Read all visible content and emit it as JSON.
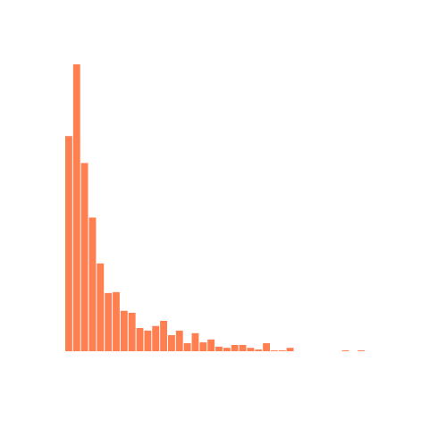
{
  "chart_data": {
    "type": "bar",
    "title": "",
    "xlabel": "",
    "ylabel": "",
    "grid": false,
    "legend": "none",
    "ylim": [
      0,
      100
    ],
    "values": [
      75.0,
      100.0,
      65.6,
      46.6,
      30.6,
      20.3,
      20.6,
      14.1,
      13.4,
      8.1,
      7.2,
      8.8,
      10.6,
      5.6,
      7.2,
      2.8,
      6.3,
      3.1,
      4.1,
      1.6,
      1.2,
      2.2,
      2.2,
      1.2,
      0.6,
      2.8,
      0.3,
      0.3,
      1.2,
      0,
      0,
      0,
      0,
      0,
      0,
      0.3,
      0,
      0.3,
      0
    ],
    "color": "#ff7f50"
  }
}
